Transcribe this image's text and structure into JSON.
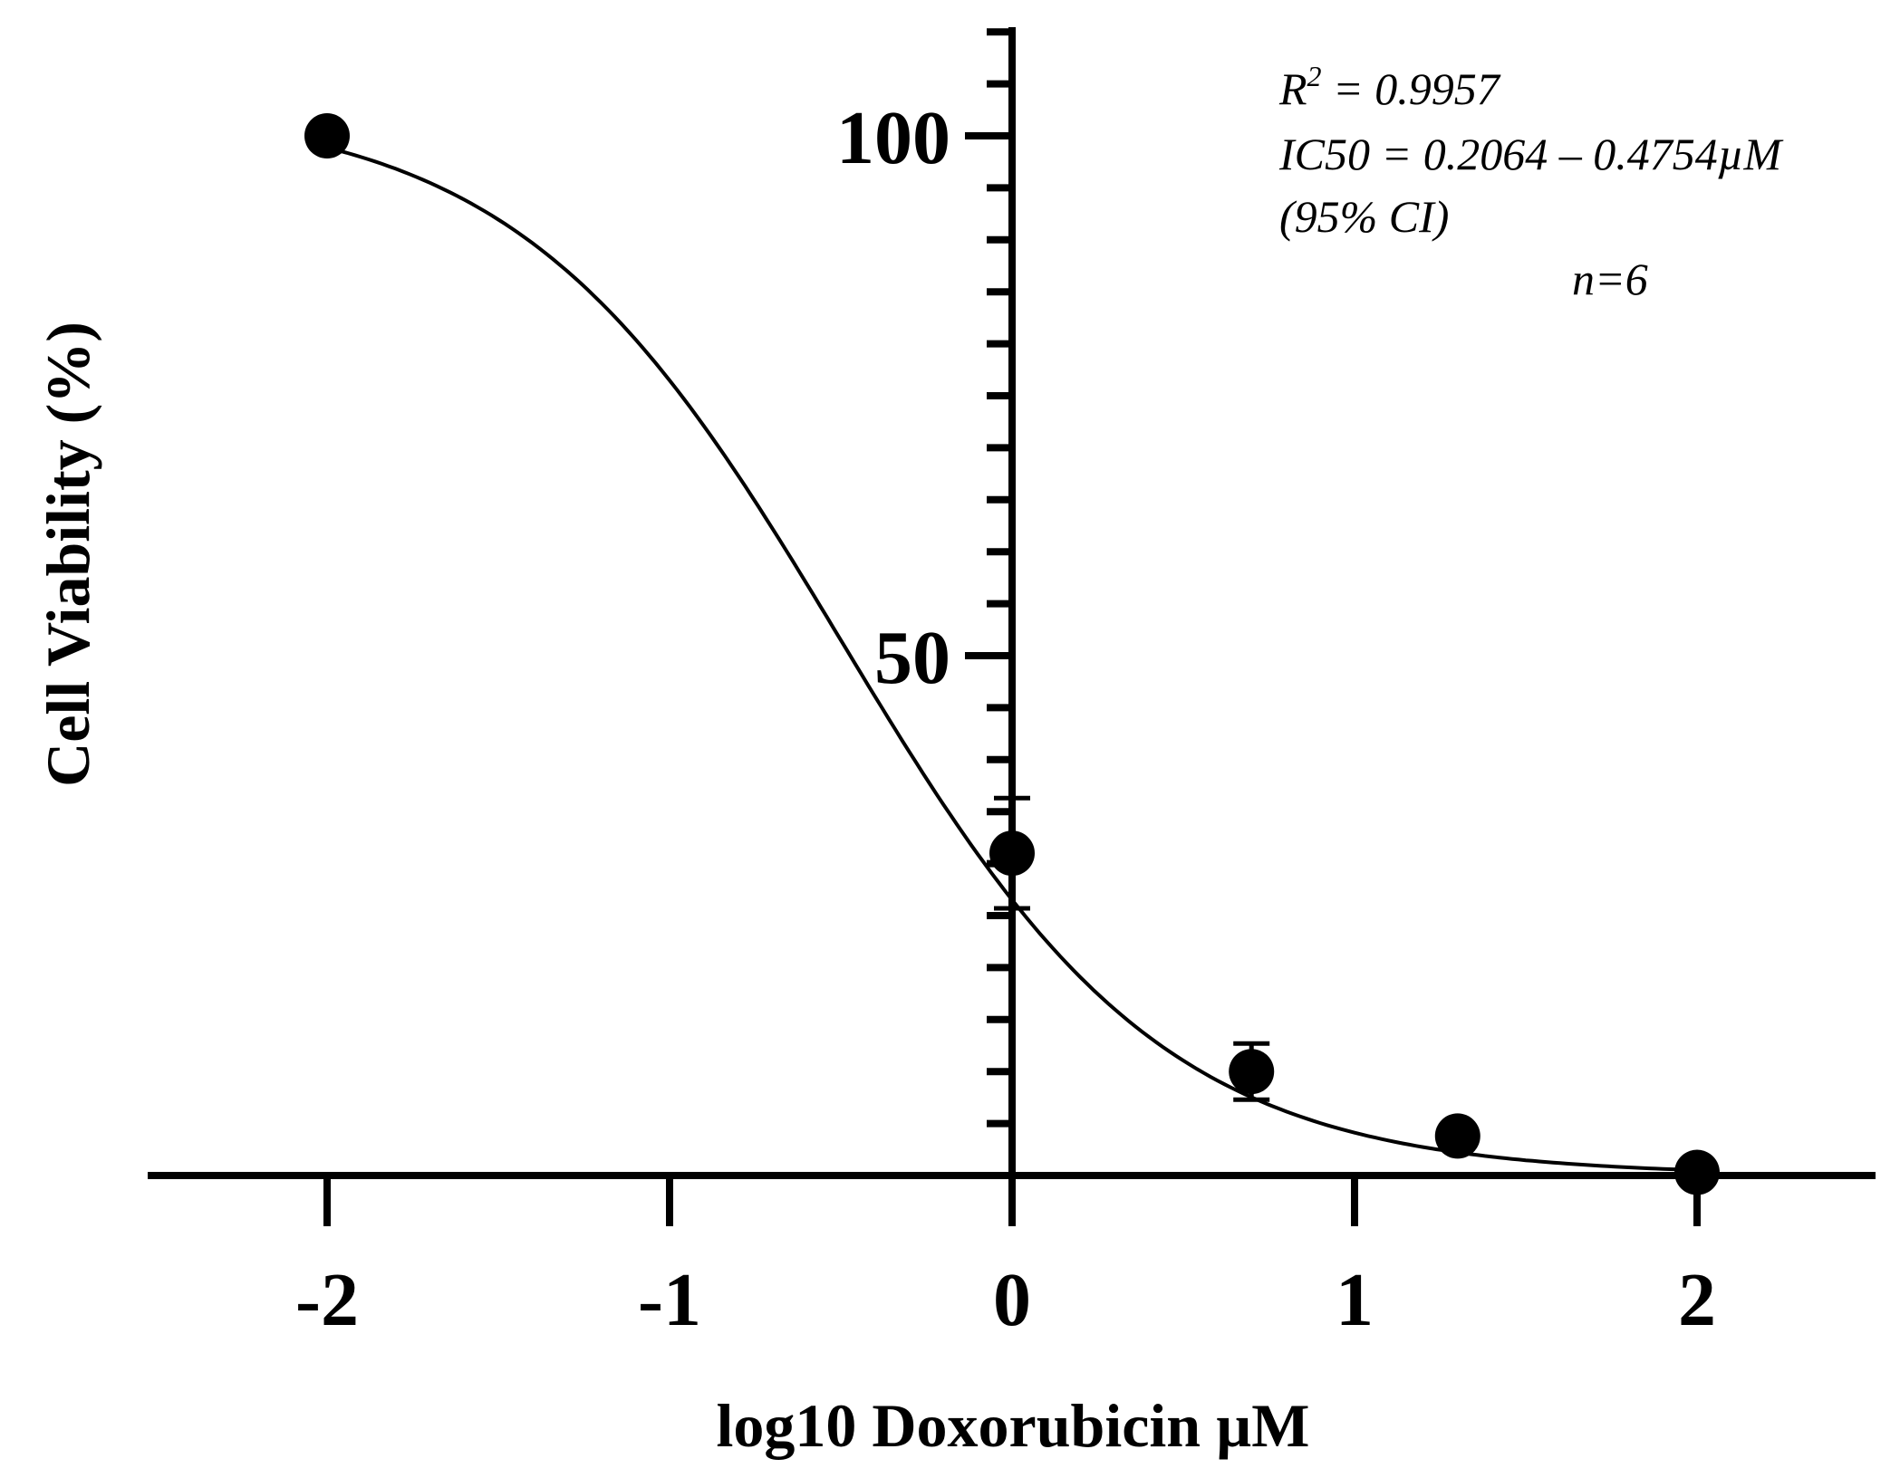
{
  "chart_data": {
    "type": "scatter",
    "xlabel": "log10 Doxorubicin µM",
    "ylabel": "Cell Viability (%)",
    "xlim": [
      -2.5,
      2.5
    ],
    "ylim": [
      0,
      110
    ],
    "x_ticks": [
      -2,
      -1,
      0,
      1,
      2
    ],
    "x_tick_labels": [
      "-2",
      "-1",
      "0",
      "1",
      "2"
    ],
    "y_major_ticks": [
      50,
      100
    ],
    "y_tick_labels": [
      "50",
      "100"
    ],
    "y_minor_tick_step": 5,
    "grid": false,
    "series": [
      {
        "points": [
          {
            "x": -2,
            "y": 100,
            "err": 0
          },
          {
            "x": 0,
            "y": 31,
            "err": 5.3
          },
          {
            "x": 0.699,
            "y": 10,
            "err": 2.7
          },
          {
            "x": 1.301,
            "y": 3.8,
            "err": 0
          },
          {
            "x": 2,
            "y": 0.3,
            "err": 0
          }
        ],
        "fit": {
          "model": "four-parameter logistic",
          "bottom": 0,
          "top": 103,
          "log_ic50": -0.5,
          "hill_slope": 0.92
        }
      }
    ],
    "annotations": [
      {
        "base": "R",
        "sup": "2",
        "text": " = 0.9957"
      },
      {
        "text": "IC50 = 0.2064 – 0.4754µM"
      },
      {
        "text": "(95% CI)"
      },
      {
        "text": "n=6"
      }
    ],
    "color": "#000000"
  }
}
